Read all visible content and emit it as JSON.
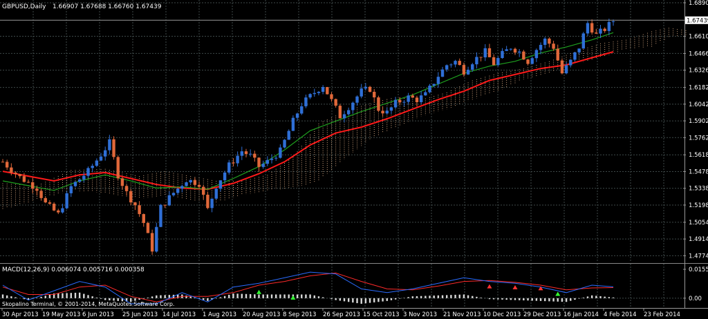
{
  "window": {
    "symbol_title": "GBPUSD,Daily",
    "ohlc": "1.66907 1.67688 1.66760 1.67439",
    "copyright": "Skopalino Terminal, © 2001-2014, MetaQuotes Software Corp."
  },
  "colors": {
    "background": "#000000",
    "grid": "#3f4a4a",
    "bull_candle": "#2f6fd6",
    "bear_candle": "#e0683a",
    "kumo": "#e6b48a",
    "slow_ma": "#ff1a1a",
    "fast_ma": "#1fa01f",
    "macd_blue": "#2a6cff",
    "macd_red": "#ff2a2a",
    "hist": "#d9d9d9",
    "signal_up": "#33ff33",
    "signal_down": "#ff3333"
  },
  "chart_data": [
    {
      "type": "candlestick",
      "title": "GBPUSD,Daily",
      "ylim": [
        1.473,
        1.689
      ],
      "price_axis_ticks": [
        "1.68900",
        "1.66100",
        "1.64660",
        "1.63260",
        "1.61820",
        "1.60420",
        "1.59020",
        "1.57620",
        "1.56180",
        "1.54780",
        "1.53380",
        "1.51980",
        "1.50540",
        "1.49140",
        "1.47740"
      ],
      "current_price_label": "1.67439",
      "x_ticks": [
        "30 Apr 2013",
        "19 May 2013",
        "6 Jun 2013",
        "25 Jun 2013",
        "14 Jul 2013",
        "1 Aug 2013",
        "20 Aug 2013",
        "8 Sep 2013",
        "26 Sep 2013",
        "15 Oct 2013",
        "3 Nov 2013",
        "21 Nov 2013",
        "10 Dec 2013",
        "29 Dec 2013",
        "16 Jan 2014",
        "4 Feb 2014",
        "23 Feb 2014"
      ],
      "close_path": [
        [
          0,
          1.556
        ],
        [
          4,
          1.543
        ],
        [
          8,
          1.534
        ],
        [
          10,
          1.521
        ],
        [
          13,
          1.512
        ],
        [
          16,
          1.535
        ],
        [
          20,
          1.548
        ],
        [
          23,
          1.562
        ],
        [
          25,
          1.572
        ],
        [
          27,
          1.545
        ],
        [
          29,
          1.53
        ],
        [
          31,
          1.52
        ],
        [
          33,
          1.505
        ],
        [
          35,
          1.483
        ],
        [
          37,
          1.518
        ],
        [
          40,
          1.53
        ],
        [
          43,
          1.541
        ],
        [
          46,
          1.538
        ],
        [
          48,
          1.516
        ],
        [
          50,
          1.536
        ],
        [
          53,
          1.553
        ],
        [
          56,
          1.565
        ],
        [
          58,
          1.561
        ],
        [
          60,
          1.552
        ],
        [
          62,
          1.556
        ],
        [
          65,
          1.565
        ],
        [
          68,
          1.59
        ],
        [
          70,
          1.604
        ],
        [
          73,
          1.614
        ],
        [
          75,
          1.62
        ],
        [
          77,
          1.607
        ],
        [
          79,
          1.594
        ],
        [
          81,
          1.602
        ],
        [
          84,
          1.615
        ],
        [
          86,
          1.617
        ],
        [
          88,
          1.6
        ],
        [
          90,
          1.597
        ],
        [
          92,
          1.605
        ],
        [
          95,
          1.61
        ],
        [
          97,
          1.608
        ],
        [
          99,
          1.612
        ],
        [
          102,
          1.628
        ],
        [
          104,
          1.637
        ],
        [
          106,
          1.64
        ],
        [
          108,
          1.632
        ],
        [
          110,
          1.64
        ],
        [
          113,
          1.648
        ],
        [
          115,
          1.638
        ],
        [
          117,
          1.646
        ],
        [
          119,
          1.652
        ],
        [
          121,
          1.648
        ],
        [
          123,
          1.64
        ],
        [
          125,
          1.65
        ],
        [
          127,
          1.658
        ],
        [
          129,
          1.652
        ],
        [
          131,
          1.63
        ],
        [
          133,
          1.64
        ],
        [
          135,
          1.652
        ],
        [
          137,
          1.672
        ],
        [
          139,
          1.662
        ],
        [
          141,
          1.667
        ],
        [
          143,
          1.674
        ]
      ],
      "slow_ma_path": [
        [
          0,
          1.548
        ],
        [
          6,
          1.544
        ],
        [
          12,
          1.54
        ],
        [
          18,
          1.545
        ],
        [
          24,
          1.547
        ],
        [
          30,
          1.542
        ],
        [
          36,
          1.537
        ],
        [
          42,
          1.534
        ],
        [
          48,
          1.533
        ],
        [
          54,
          1.538
        ],
        [
          60,
          1.546
        ],
        [
          66,
          1.556
        ],
        [
          72,
          1.57
        ],
        [
          78,
          1.58
        ],
        [
          84,
          1.585
        ],
        [
          90,
          1.592
        ],
        [
          96,
          1.6
        ],
        [
          102,
          1.608
        ],
        [
          108,
          1.615
        ],
        [
          114,
          1.624
        ],
        [
          120,
          1.629
        ],
        [
          126,
          1.634
        ],
        [
          132,
          1.637
        ],
        [
          138,
          1.643
        ],
        [
          143,
          1.648
        ]
      ],
      "fast_ma_path": [
        [
          0,
          1.54
        ],
        [
          6,
          1.536
        ],
        [
          12,
          1.532
        ],
        [
          18,
          1.54
        ],
        [
          24,
          1.545
        ],
        [
          30,
          1.54
        ],
        [
          36,
          1.534
        ],
        [
          42,
          1.535
        ],
        [
          48,
          1.533
        ],
        [
          54,
          1.542
        ],
        [
          60,
          1.552
        ],
        [
          66,
          1.566
        ],
        [
          72,
          1.582
        ],
        [
          78,
          1.59
        ],
        [
          84,
          1.598
        ],
        [
          90,
          1.605
        ],
        [
          96,
          1.612
        ],
        [
          102,
          1.621
        ],
        [
          108,
          1.63
        ],
        [
          114,
          1.636
        ],
        [
          120,
          1.64
        ],
        [
          126,
          1.647
        ],
        [
          132,
          1.652
        ],
        [
          138,
          1.658
        ],
        [
          143,
          1.664
        ]
      ],
      "kumo_upper": [
        [
          0,
          1.538
        ],
        [
          8,
          1.536
        ],
        [
          16,
          1.549
        ],
        [
          24,
          1.55
        ],
        [
          32,
          1.544
        ],
        [
          38,
          1.548
        ],
        [
          44,
          1.544
        ],
        [
          50,
          1.54
        ],
        [
          56,
          1.54
        ],
        [
          62,
          1.545
        ],
        [
          68,
          1.56
        ],
        [
          74,
          1.588
        ],
        [
          80,
          1.598
        ],
        [
          86,
          1.605
        ],
        [
          92,
          1.61
        ],
        [
          98,
          1.608
        ],
        [
          104,
          1.614
        ],
        [
          110,
          1.624
        ],
        [
          116,
          1.63
        ],
        [
          122,
          1.634
        ],
        [
          128,
          1.64
        ],
        [
          134,
          1.648
        ],
        [
          140,
          1.655
        ],
        [
          146,
          1.658
        ],
        [
          152,
          1.665
        ],
        [
          156,
          1.668
        ],
        [
          160,
          1.666
        ]
      ],
      "kumo_lower": [
        [
          0,
          1.516
        ],
        [
          8,
          1.524
        ],
        [
          16,
          1.532
        ],
        [
          24,
          1.53
        ],
        [
          32,
          1.525
        ],
        [
          38,
          1.528
        ],
        [
          44,
          1.524
        ],
        [
          50,
          1.522
        ],
        [
          56,
          1.528
        ],
        [
          62,
          1.532
        ],
        [
          68,
          1.534
        ],
        [
          74,
          1.54
        ],
        [
          80,
          1.558
        ],
        [
          86,
          1.575
        ],
        [
          92,
          1.585
        ],
        [
          98,
          1.594
        ],
        [
          104,
          1.6
        ],
        [
          110,
          1.608
        ],
        [
          116,
          1.615
        ],
        [
          122,
          1.625
        ],
        [
          128,
          1.63
        ],
        [
          134,
          1.638
        ],
        [
          140,
          1.643
        ],
        [
          146,
          1.65
        ],
        [
          152,
          1.652
        ],
        [
          156,
          1.66
        ],
        [
          160,
          1.662
        ]
      ]
    },
    {
      "type": "line",
      "title": "MACD(12,26,9) 0.006074 0.005716 0.000358",
      "ylim": [
        -0.0045,
        0.017
      ],
      "y_ticks": [
        "0.01551",
        "0.00"
      ],
      "macd_path": [
        [
          0,
          0.007
        ],
        [
          6,
          -0.001
        ],
        [
          12,
          0.004
        ],
        [
          18,
          0.009
        ],
        [
          24,
          0.006
        ],
        [
          30,
          -0.003
        ],
        [
          36,
          -0.003
        ],
        [
          42,
          0.003
        ],
        [
          48,
          -0.002
        ],
        [
          54,
          0.006
        ],
        [
          60,
          0.008
        ],
        [
          66,
          0.011
        ],
        [
          72,
          0.014
        ],
        [
          78,
          0.013
        ],
        [
          84,
          0.005
        ],
        [
          90,
          0.003
        ],
        [
          96,
          0.005
        ],
        [
          102,
          0.008
        ],
        [
          108,
          0.011
        ],
        [
          114,
          0.009
        ],
        [
          120,
          0.008
        ],
        [
          126,
          0.006
        ],
        [
          132,
          0.003
        ],
        [
          138,
          0.007
        ],
        [
          143,
          0.0061
        ]
      ],
      "signal_path": [
        [
          0,
          0.006
        ],
        [
          6,
          0.002
        ],
        [
          12,
          0.002
        ],
        [
          18,
          0.006
        ],
        [
          24,
          0.007
        ],
        [
          30,
          0.001
        ],
        [
          36,
          -0.002
        ],
        [
          42,
          0.001
        ],
        [
          48,
          0.001
        ],
        [
          54,
          0.003
        ],
        [
          60,
          0.007
        ],
        [
          66,
          0.009
        ],
        [
          72,
          0.012
        ],
        [
          78,
          0.0135
        ],
        [
          84,
          0.009
        ],
        [
          90,
          0.005
        ],
        [
          96,
          0.0045
        ],
        [
          102,
          0.0065
        ],
        [
          108,
          0.009
        ],
        [
          114,
          0.0095
        ],
        [
          120,
          0.0085
        ],
        [
          126,
          0.007
        ],
        [
          132,
          0.0045
        ],
        [
          138,
          0.0055
        ],
        [
          143,
          0.0057
        ]
      ],
      "hist_path": [
        [
          0,
          0.002
        ],
        [
          6,
          -0.001
        ],
        [
          12,
          0.0025
        ],
        [
          18,
          0.003
        ],
        [
          24,
          -0.001
        ],
        [
          30,
          -0.002
        ],
        [
          36,
          0.0015
        ],
        [
          42,
          0.002
        ],
        [
          48,
          -0.0015
        ],
        [
          54,
          0.0025
        ],
        [
          60,
          0.002
        ],
        [
          66,
          0.002
        ],
        [
          72,
          0.002
        ],
        [
          78,
          -0.001
        ],
        [
          84,
          -0.003
        ],
        [
          90,
          -0.0015
        ],
        [
          96,
          0.001
        ],
        [
          102,
          0.0015
        ],
        [
          108,
          0.002
        ],
        [
          114,
          -0.0005
        ],
        [
          120,
          -0.001
        ],
        [
          126,
          -0.0015
        ],
        [
          132,
          -0.002
        ],
        [
          138,
          0.0015
        ],
        [
          143,
          0.0004
        ]
      ],
      "markers": [
        {
          "i": 60,
          "v": 0.003,
          "kind": "up"
        },
        {
          "i": 68,
          "v": 0.0,
          "kind": "up"
        },
        {
          "i": 114,
          "v": 0.006,
          "kind": "down"
        },
        {
          "i": 120,
          "v": 0.0055,
          "kind": "down"
        },
        {
          "i": 126,
          "v": 0.005,
          "kind": "down"
        },
        {
          "i": 130,
          "v": 0.002,
          "kind": "up"
        }
      ]
    }
  ]
}
